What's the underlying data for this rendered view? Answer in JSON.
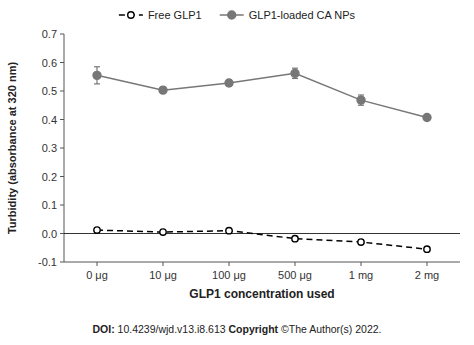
{
  "chart_data": {
    "type": "line",
    "xlabel": "GLP1 concentration used",
    "ylabel": "Turbidity (absorbance at 320 nm)",
    "categories": [
      "0 μg",
      "10 μg",
      "100 μg",
      "500 μg",
      "1 mg",
      "2 mg"
    ],
    "series": [
      {
        "name": "Free GLP1",
        "color": "#000000",
        "line_style": "dashed",
        "marker": "circle-open",
        "values": [
          0.012,
          0.005,
          0.01,
          -0.018,
          -0.03,
          -0.055
        ],
        "errors": [
          0.005,
          0.005,
          0.005,
          0.005,
          0.005,
          0.005
        ]
      },
      {
        "name": "GLP1-loaded CA NPs",
        "color": "#777777",
        "line_style": "solid",
        "marker": "circle",
        "values": [
          0.555,
          0.503,
          0.528,
          0.562,
          0.468,
          0.407
        ],
        "errors": [
          0.03,
          0.01,
          0.01,
          0.018,
          0.018,
          0.01
        ]
      }
    ],
    "ylim": [
      -0.1,
      0.7
    ],
    "yticks": [
      -0.1,
      {
        "value": 0,
        "label": "0.0"
      },
      0.1,
      0.2,
      0.3,
      0.4,
      0.5,
      0.6,
      0.7
    ],
    "grid": false,
    "legend": "top",
    "annotations": [
      "DOI:",
      "10.4239/wjd.v13.i8.613",
      "Copyright",
      "©The Author(s) 2022."
    ]
  }
}
